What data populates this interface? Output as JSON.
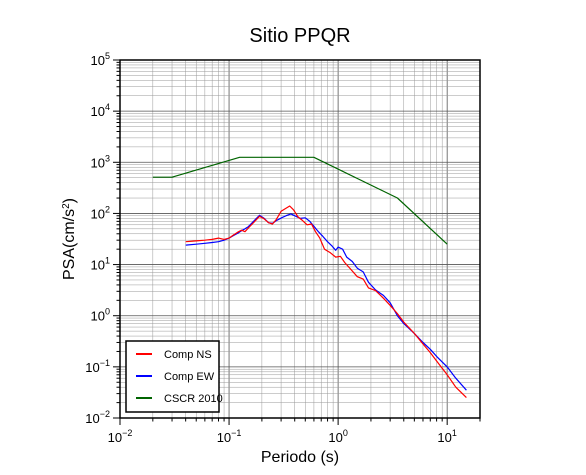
{
  "chart_data": {
    "type": "line",
    "title": "Sitio PPQR",
    "xlabel": "Periodo (s)",
    "ylabel_base": "PSA(cm/s",
    "ylabel_sup": "2",
    "ylabel_close": ")",
    "xscale": "log",
    "yscale": "log",
    "xlim": [
      0.01,
      20
    ],
    "ylim": [
      0.01,
      100000
    ],
    "grid": true,
    "legend_position": "bottom-left",
    "x_ticks": [
      {
        "base": "10",
        "exp": "−2",
        "value": 0.01
      },
      {
        "base": "10",
        "exp": "−1",
        "value": 0.1
      },
      {
        "base": "10",
        "exp": "0",
        "value": 1
      },
      {
        "base": "10",
        "exp": "1",
        "value": 10
      }
    ],
    "y_ticks": [
      {
        "base": "10",
        "exp": "−2",
        "value": 0.01
      },
      {
        "base": "10",
        "exp": "−1",
        "value": 0.1
      },
      {
        "base": "10",
        "exp": "0",
        "value": 1
      },
      {
        "base": "10",
        "exp": "1",
        "value": 10
      },
      {
        "base": "10",
        "exp": "2",
        "value": 100
      },
      {
        "base": "10",
        "exp": "3",
        "value": 1000
      },
      {
        "base": "10",
        "exp": "4",
        "value": 10000
      },
      {
        "base": "10",
        "exp": "5",
        "value": 100000
      }
    ],
    "series": [
      {
        "name": "Comp NS",
        "color": "#ff0000",
        "points": [
          [
            0.04,
            28
          ],
          [
            0.05,
            29
          ],
          [
            0.06,
            30
          ],
          [
            0.07,
            31
          ],
          [
            0.08,
            33
          ],
          [
            0.09,
            31
          ],
          [
            0.1,
            33
          ],
          [
            0.11,
            38
          ],
          [
            0.12,
            43
          ],
          [
            0.13,
            47
          ],
          [
            0.14,
            44
          ],
          [
            0.15,
            52
          ],
          [
            0.17,
            68
          ],
          [
            0.19,
            88
          ],
          [
            0.21,
            78
          ],
          [
            0.23,
            66
          ],
          [
            0.25,
            62
          ],
          [
            0.27,
            75
          ],
          [
            0.3,
            110
          ],
          [
            0.33,
            125
          ],
          [
            0.36,
            140
          ],
          [
            0.39,
            118
          ],
          [
            0.43,
            85
          ],
          [
            0.47,
            73
          ],
          [
            0.52,
            60
          ],
          [
            0.57,
            62
          ],
          [
            0.62,
            44
          ],
          [
            0.68,
            33
          ],
          [
            0.75,
            20
          ],
          [
            0.85,
            17
          ],
          [
            0.95,
            14
          ],
          [
            1.05,
            14.5
          ],
          [
            1.15,
            11
          ],
          [
            1.3,
            8.2
          ],
          [
            1.5,
            5.8
          ],
          [
            1.7,
            5.2
          ],
          [
            1.9,
            3.5
          ],
          [
            2.2,
            3.1
          ],
          [
            2.6,
            2.2
          ],
          [
            3.0,
            1.6
          ],
          [
            3.5,
            1.1
          ],
          [
            4.0,
            0.75
          ],
          [
            5.0,
            0.45
          ],
          [
            6.0,
            0.28
          ],
          [
            7.0,
            0.19
          ],
          [
            8.0,
            0.13
          ],
          [
            10.0,
            0.07
          ],
          [
            12.0,
            0.04
          ],
          [
            15.0,
            0.025
          ]
        ]
      },
      {
        "name": "Comp EW",
        "color": "#0000ff",
        "points": [
          [
            0.04,
            24
          ],
          [
            0.05,
            25
          ],
          [
            0.06,
            26
          ],
          [
            0.07,
            27
          ],
          [
            0.08,
            28
          ],
          [
            0.09,
            30
          ],
          [
            0.1,
            33
          ],
          [
            0.11,
            37
          ],
          [
            0.12,
            41
          ],
          [
            0.13,
            46
          ],
          [
            0.14,
            50
          ],
          [
            0.15,
            55
          ],
          [
            0.17,
            72
          ],
          [
            0.19,
            92
          ],
          [
            0.21,
            80
          ],
          [
            0.23,
            66
          ],
          [
            0.25,
            64
          ],
          [
            0.28,
            75
          ],
          [
            0.31,
            84
          ],
          [
            0.34,
            92
          ],
          [
            0.37,
            98
          ],
          [
            0.41,
            88
          ],
          [
            0.45,
            80
          ],
          [
            0.5,
            82
          ],
          [
            0.55,
            70
          ],
          [
            0.6,
            56
          ],
          [
            0.66,
            44
          ],
          [
            0.72,
            36
          ],
          [
            0.8,
            28
          ],
          [
            0.88,
            23
          ],
          [
            0.95,
            19
          ],
          [
            1.0,
            22
          ],
          [
            1.1,
            20
          ],
          [
            1.2,
            14
          ],
          [
            1.35,
            11.5
          ],
          [
            1.5,
            8.5
          ],
          [
            1.7,
            7.2
          ],
          [
            1.9,
            4.5
          ],
          [
            2.2,
            3.2
          ],
          [
            2.6,
            2.5
          ],
          [
            3.0,
            1.8
          ],
          [
            3.5,
            1.0
          ],
          [
            4.0,
            0.7
          ],
          [
            5.0,
            0.45
          ],
          [
            6.0,
            0.3
          ],
          [
            7.0,
            0.22
          ],
          [
            8.0,
            0.16
          ],
          [
            10.0,
            0.1
          ],
          [
            12.0,
            0.06
          ],
          [
            15.0,
            0.035
          ]
        ]
      },
      {
        "name": "CSCR 2010",
        "color": "#006400",
        "points": [
          [
            0.02,
            510
          ],
          [
            0.03,
            510
          ],
          [
            0.125,
            1250
          ],
          [
            0.6,
            1250
          ],
          [
            3.5,
            200
          ],
          [
            10.0,
            25
          ]
        ]
      }
    ]
  }
}
